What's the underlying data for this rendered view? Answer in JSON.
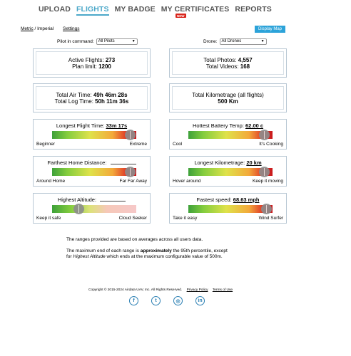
{
  "nav": {
    "items": [
      "UPLOAD",
      "FLIGHTS",
      "MY BADGE",
      "MY CERTIFICATES",
      "REPORTS"
    ],
    "active": "FLIGHTS",
    "new_badge": "NEW"
  },
  "units": {
    "metric": "Metric",
    "separator": " / ",
    "imperial": "Imperial"
  },
  "settings_label": "Settings",
  "display_map_label": "Display Map",
  "filters": {
    "pilot_label": "Pilot in command:",
    "pilot_value": "All Pilots",
    "drone_label": "Drone:",
    "drone_value": "All Drones"
  },
  "stats": {
    "active_flights_label": "Active Flights:",
    "active_flights_value": "273",
    "plan_limit_label": "Plan limit:",
    "plan_limit_value": "1200",
    "total_photos_label": "Total Photos:",
    "total_photos_value": "4,557",
    "total_videos_label": "Total Videos:",
    "total_videos_value": "168",
    "air_time_label": "Total Air Time:",
    "air_time_value": "49h 46m 28s",
    "log_time_label": "Total Log Time:",
    "log_time_value": "50h 11m 36s",
    "kilometrage_label": "Total Kilometrage (all flights)",
    "kilometrage_value": "500 Km"
  },
  "gauges": [
    {
      "title": "Longest Flight Time:",
      "value": "33m 17s",
      "low": "Beginner",
      "high": "Extreme",
      "level": 0.93
    },
    {
      "title": "Hottest Battery Temp:",
      "value": "62.00 c",
      "low": "Cool",
      "high": "It's Cooking",
      "level": 0.9
    },
    {
      "title": "Farthest Home Distance:",
      "value": "",
      "low": "Around Home",
      "high": "Far Far Away",
      "level": 0.93
    },
    {
      "title": "Longest Kilometrage:",
      "value": "20 km",
      "low": "Hover around",
      "high": "Keep it moving",
      "level": 0.9
    },
    {
      "title": "Highest Altitude:",
      "value": "",
      "low": "Keep it safe",
      "high": "Cloud Seeker",
      "level": 0.32
    },
    {
      "title": "Fastest speed:",
      "value": "68.63 mph",
      "low": "Take it easy",
      "high": "Wind Surfer",
      "level": 0.93
    }
  ],
  "notes": {
    "line1": "The ranges provided are based on averages across all users data.",
    "line2_pre": "The maximum end of each range is ",
    "line2_bold": "approximately",
    "line2_post": " the 95th percentile, except",
    "line3_pre": "for ",
    "line3_italic": "Highest Altitude",
    "line3_post": " which ends at the maximum configurable value of 500m."
  },
  "footer": {
    "copyright": "Copyright © 2015-2024 Airdata UAV, Inc. All Rights Reserved.",
    "privacy": "Privacy Policy",
    "terms": "Terms of Use"
  },
  "social": [
    "facebook-icon",
    "twitter-icon",
    "instagram-icon",
    "linkedin-icon"
  ]
}
